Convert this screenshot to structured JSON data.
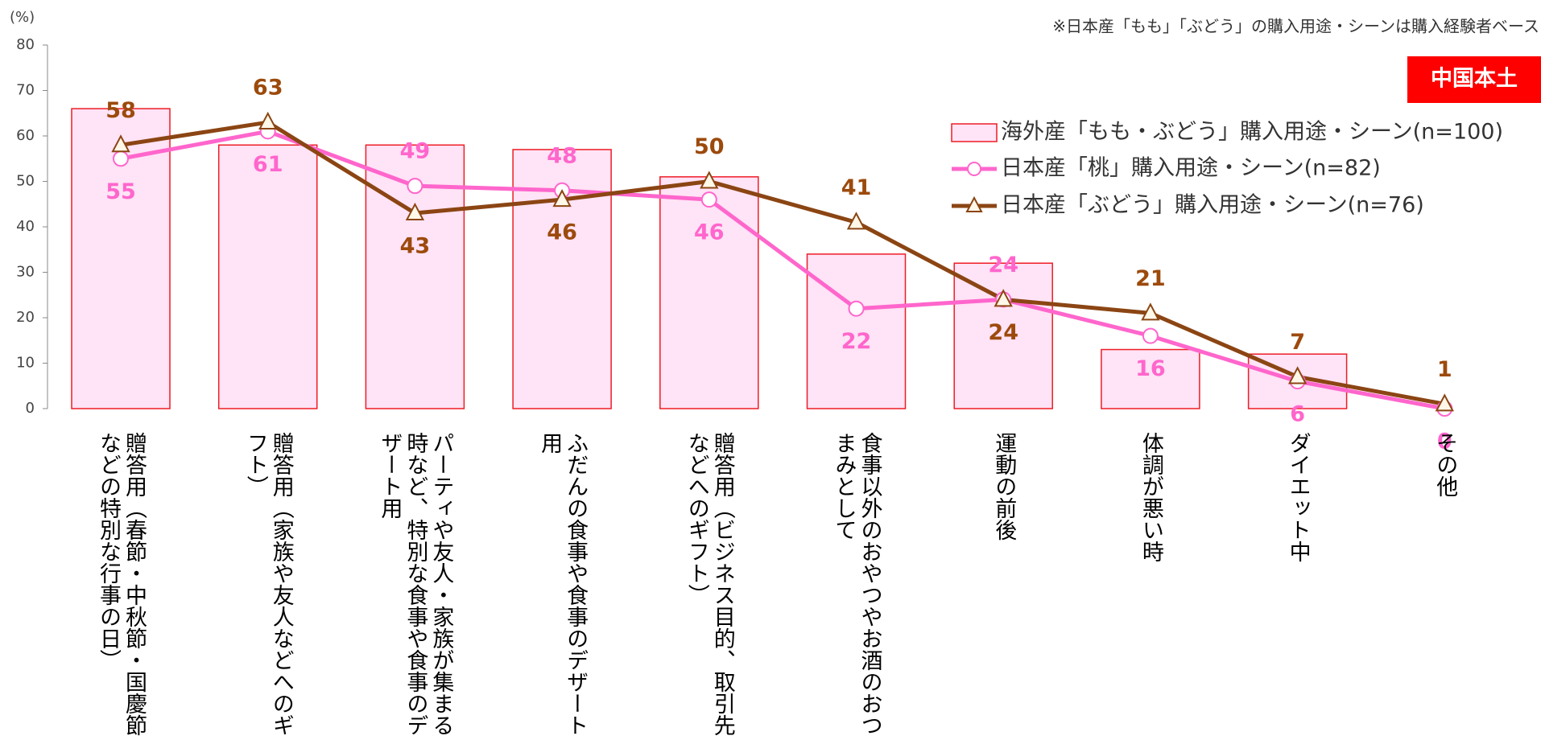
{
  "chart_data": {
    "type": "bar",
    "unit_label": "(%)",
    "note": "※日本産「もも」「ぶどう」の購入用途・シーンは購入経験者ベース",
    "region": "中国本土",
    "categories": [
      "贈答用（春節・中秋節・国慶節などの特別な行事の日）",
      "贈答用（家族や友人などへのギフト）",
      "パーティや友人・家族が集まる時など、特別な食事や食事のデザート用",
      "ふだんの食事や食事のデザート用",
      "贈答用（ビジネス目的、取引先などへのギフト）",
      "食事以外のおやつやお酒のおつまみとして",
      "運動の前後",
      "体調が悪い時",
      "ダイエット中",
      "その他"
    ],
    "series": [
      {
        "name": "海外産「もも・ぶどう」購入用途・シーン(n=100)",
        "type": "bar",
        "color": "#ee1c25",
        "fill": "#ffe3f6",
        "values": [
          66,
          58,
          58,
          57,
          51,
          34,
          32,
          13,
          12,
          0
        ]
      },
      {
        "name": "日本産「桃」購入用途・シーン(n=82)",
        "type": "line",
        "marker": "circle",
        "color": "#ff66cc",
        "values": [
          55,
          61,
          49,
          48,
          46,
          22,
          24,
          16,
          6,
          0
        ]
      },
      {
        "name": "日本産「ぶどう」購入用途・シーン(n=76)",
        "type": "line",
        "marker": "triangle",
        "color": "#8b4513",
        "label_color": "#9c4a0c",
        "values": [
          58,
          63,
          43,
          46,
          50,
          41,
          24,
          21,
          7,
          1
        ]
      }
    ],
    "ylim": [
      0,
      80
    ],
    "yticks": [
      0,
      10,
      20,
      30,
      40,
      50,
      60,
      70,
      80
    ]
  }
}
